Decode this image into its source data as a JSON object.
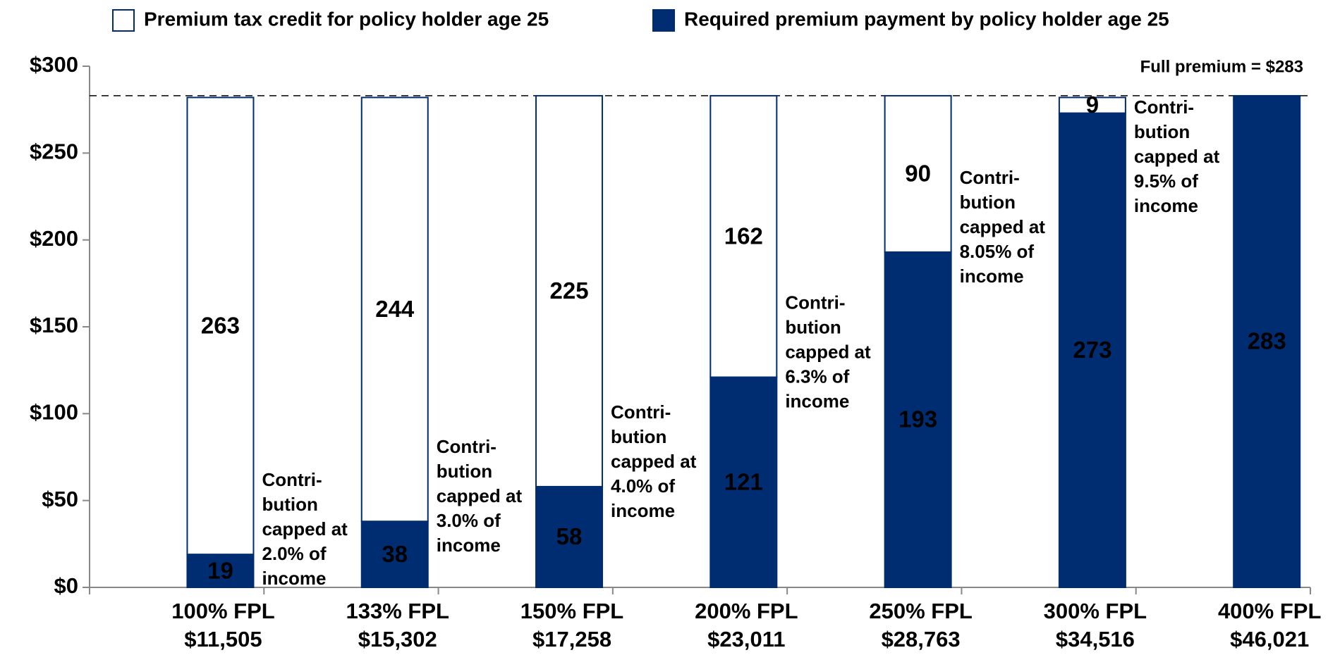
{
  "chart_data": {
    "type": "stacked_bar",
    "categories": [
      [
        "100% FPL",
        "$11,505"
      ],
      [
        "133% FPL",
        "$15,302"
      ],
      [
        "150% FPL",
        "$17,258"
      ],
      [
        "200% FPL",
        "$23,011"
      ],
      [
        "250% FPL",
        "$28,763"
      ],
      [
        "300% FPL",
        "$34,516"
      ],
      [
        "400% FPL",
        "$46,021"
      ]
    ],
    "series": [
      {
        "name": "Required premium payment by policy holder age 25",
        "color": "#002d72",
        "values": [
          19,
          38,
          58,
          121,
          193,
          273,
          283
        ]
      },
      {
        "name": "Premium tax credit for policy holder age 25",
        "color": "#ffffff",
        "values": [
          263,
          244,
          225,
          162,
          90,
          9,
          null
        ]
      }
    ],
    "legend_order": [
      1,
      0
    ],
    "annotations": [
      [
        "Contri-",
        "bution",
        "capped at",
        "2.0% of",
        "income"
      ],
      [
        "Contri-",
        "bution",
        "capped at",
        "3.0% of",
        "income"
      ],
      [
        "Contri-",
        "bution",
        "capped at",
        "4.0% of",
        "income"
      ],
      [
        "Contri-",
        "bution",
        "capped at",
        "6.3% of",
        "income"
      ],
      [
        "Contri-",
        "bution",
        "capped at",
        "8.05% of",
        "income"
      ],
      [
        "Contri-",
        "bution",
        "capped at",
        "9.5% of",
        "income"
      ],
      null
    ],
    "reference_line": {
      "value": 283,
      "label": "Full premium = $283"
    },
    "ylim": [
      0,
      300
    ],
    "yticks": [
      {
        "value": 0,
        "label": "$0"
      },
      {
        "value": 50,
        "label": "$50"
      },
      {
        "value": 100,
        "label": "$100"
      },
      {
        "value": 150,
        "label": "$150"
      },
      {
        "value": 200,
        "label": "$200"
      },
      {
        "value": 250,
        "label": "$250"
      },
      {
        "value": 300,
        "label": "$300"
      }
    ]
  }
}
